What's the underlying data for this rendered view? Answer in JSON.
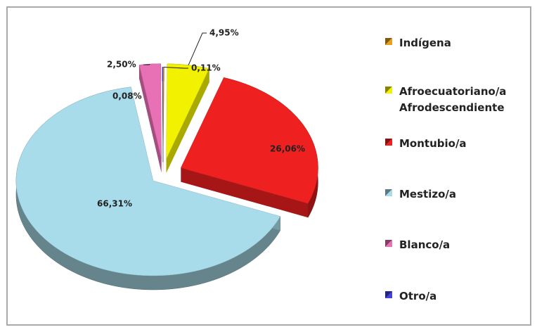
{
  "chart_data": {
    "type": "pie",
    "categories": [
      "Indígena",
      "Afroecuatoriano/a Afrodescendiente",
      "Montubio/a",
      "Mestizo/a",
      "Blanco/a",
      "Otro/a"
    ],
    "values": [
      0.11,
      4.95,
      26.06,
      66.31,
      2.5,
      0.08
    ],
    "value_labels": [
      "0,11%",
      "4,95%",
      "26,06%",
      "66,31%",
      "2,50%",
      "0,08%"
    ],
    "colors": [
      "#e8a020",
      "#f2f200",
      "#ee2020",
      "#a8dcea",
      "#e870b4",
      "#4444d8"
    ]
  }
}
